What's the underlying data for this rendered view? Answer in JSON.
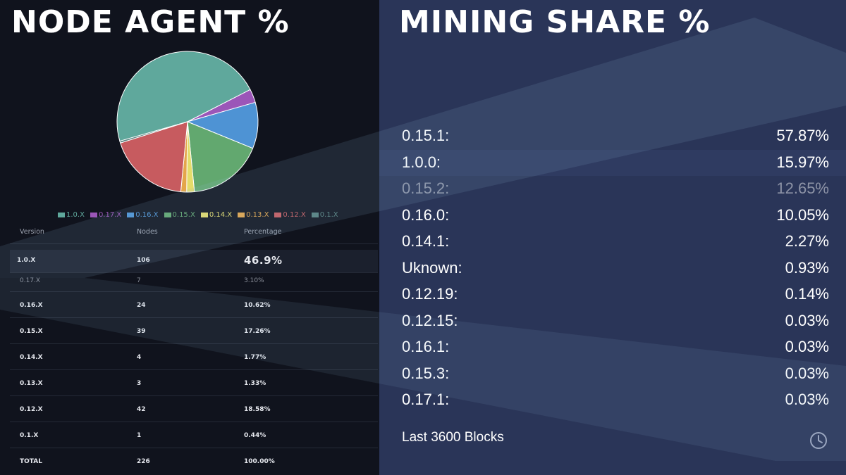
{
  "node_agent": {
    "heading": "NODE AGENT  %"
  },
  "mining_share": {
    "heading": "MINING SHARE %",
    "rows": [
      {
        "version": "0.15.1:",
        "share": "57.87%"
      },
      {
        "version": "1.0.0:",
        "share": "15.97%"
      },
      {
        "version": "0.15.2:",
        "share": "12.65%"
      },
      {
        "version": "0.16.0:",
        "share": "10.05%"
      },
      {
        "version": "0.14.1:",
        "share": "2.27%"
      },
      {
        "version": "Uknown:",
        "share": "0.93%"
      },
      {
        "version": "0.12.19:",
        "share": "0.14%"
      },
      {
        "version": "0.12.15:",
        "share": "0.03%"
      },
      {
        "version": "0.16.1:",
        "share": "0.03%"
      },
      {
        "version": "0.15.3:",
        "share": "0.03%"
      },
      {
        "version": "0.17.1:",
        "share": "0.03%"
      }
    ],
    "footer": "Last 3600 Blocks",
    "footer_icon": "clock-icon"
  },
  "chart_data": {
    "type": "pie",
    "categories": [
      "1.0.X",
      "0.17.X",
      "0.16.X",
      "0.15.X",
      "0.14.X",
      "0.13.X",
      "0.12.X",
      "0.1.X"
    ],
    "values": [
      46.9,
      3.1,
      10.62,
      17.26,
      1.77,
      1.33,
      18.58,
      0.44
    ],
    "colors": [
      "#5fa89c",
      "#9b56b8",
      "#4e93d4",
      "#62a86f",
      "#e4dc6a",
      "#e4a64a",
      "#c75b5f",
      "#56807e"
    ],
    "legend_placement": "bottom",
    "title": "",
    "table": {
      "columns": [
        "Version",
        "Nodes",
        "Percentage"
      ],
      "rows": [
        {
          "version": "1.0.X",
          "nodes": "106",
          "percentage": "46.9%"
        },
        {
          "version": "0.17.X",
          "nodes": "7",
          "percentage": "3.10%"
        },
        {
          "version": "0.16.X",
          "nodes": "24",
          "percentage": "10.62%"
        },
        {
          "version": "0.15.X",
          "nodes": "39",
          "percentage": "17.26%"
        },
        {
          "version": "0.14.X",
          "nodes": "4",
          "percentage": "1.77%"
        },
        {
          "version": "0.13.X",
          "nodes": "3",
          "percentage": "1.33%"
        },
        {
          "version": "0.12.X",
          "nodes": "42",
          "percentage": "18.58%"
        },
        {
          "version": "0.1.X",
          "nodes": "1",
          "percentage": "0.44%"
        }
      ],
      "total": {
        "version": "TOTAL",
        "nodes": "226",
        "percentage": "100.00%"
      }
    }
  }
}
